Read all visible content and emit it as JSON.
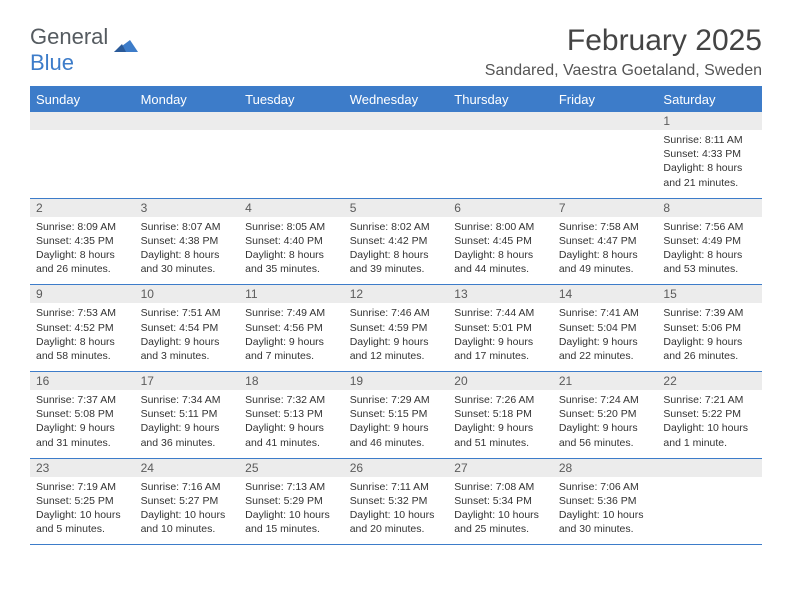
{
  "logo": {
    "text1": "General",
    "text2": "Blue"
  },
  "title": "February 2025",
  "location": "Sandared, Vaestra Goetaland, Sweden",
  "colors": {
    "header_bg": "#3d7cc9",
    "header_fg": "#ffffff",
    "daynum_bg": "#ececec",
    "rule": "#3d7cc9",
    "text": "#333333",
    "page_bg": "#ffffff"
  },
  "weekdays": [
    "Sunday",
    "Monday",
    "Tuesday",
    "Wednesday",
    "Thursday",
    "Friday",
    "Saturday"
  ],
  "weeks": [
    [
      {
        "n": "",
        "lines": [
          "",
          "",
          "",
          ""
        ]
      },
      {
        "n": "",
        "lines": [
          "",
          "",
          "",
          ""
        ]
      },
      {
        "n": "",
        "lines": [
          "",
          "",
          "",
          ""
        ]
      },
      {
        "n": "",
        "lines": [
          "",
          "",
          "",
          ""
        ]
      },
      {
        "n": "",
        "lines": [
          "",
          "",
          "",
          ""
        ]
      },
      {
        "n": "",
        "lines": [
          "",
          "",
          "",
          ""
        ]
      },
      {
        "n": "1",
        "lines": [
          "Sunrise: 8:11 AM",
          "Sunset: 4:33 PM",
          "Daylight: 8 hours",
          "and 21 minutes."
        ]
      }
    ],
    [
      {
        "n": "2",
        "lines": [
          "Sunrise: 8:09 AM",
          "Sunset: 4:35 PM",
          "Daylight: 8 hours",
          "and 26 minutes."
        ]
      },
      {
        "n": "3",
        "lines": [
          "Sunrise: 8:07 AM",
          "Sunset: 4:38 PM",
          "Daylight: 8 hours",
          "and 30 minutes."
        ]
      },
      {
        "n": "4",
        "lines": [
          "Sunrise: 8:05 AM",
          "Sunset: 4:40 PM",
          "Daylight: 8 hours",
          "and 35 minutes."
        ]
      },
      {
        "n": "5",
        "lines": [
          "Sunrise: 8:02 AM",
          "Sunset: 4:42 PM",
          "Daylight: 8 hours",
          "and 39 minutes."
        ]
      },
      {
        "n": "6",
        "lines": [
          "Sunrise: 8:00 AM",
          "Sunset: 4:45 PM",
          "Daylight: 8 hours",
          "and 44 minutes."
        ]
      },
      {
        "n": "7",
        "lines": [
          "Sunrise: 7:58 AM",
          "Sunset: 4:47 PM",
          "Daylight: 8 hours",
          "and 49 minutes."
        ]
      },
      {
        "n": "8",
        "lines": [
          "Sunrise: 7:56 AM",
          "Sunset: 4:49 PM",
          "Daylight: 8 hours",
          "and 53 minutes."
        ]
      }
    ],
    [
      {
        "n": "9",
        "lines": [
          "Sunrise: 7:53 AM",
          "Sunset: 4:52 PM",
          "Daylight: 8 hours",
          "and 58 minutes."
        ]
      },
      {
        "n": "10",
        "lines": [
          "Sunrise: 7:51 AM",
          "Sunset: 4:54 PM",
          "Daylight: 9 hours",
          "and 3 minutes."
        ]
      },
      {
        "n": "11",
        "lines": [
          "Sunrise: 7:49 AM",
          "Sunset: 4:56 PM",
          "Daylight: 9 hours",
          "and 7 minutes."
        ]
      },
      {
        "n": "12",
        "lines": [
          "Sunrise: 7:46 AM",
          "Sunset: 4:59 PM",
          "Daylight: 9 hours",
          "and 12 minutes."
        ]
      },
      {
        "n": "13",
        "lines": [
          "Sunrise: 7:44 AM",
          "Sunset: 5:01 PM",
          "Daylight: 9 hours",
          "and 17 minutes."
        ]
      },
      {
        "n": "14",
        "lines": [
          "Sunrise: 7:41 AM",
          "Sunset: 5:04 PM",
          "Daylight: 9 hours",
          "and 22 minutes."
        ]
      },
      {
        "n": "15",
        "lines": [
          "Sunrise: 7:39 AM",
          "Sunset: 5:06 PM",
          "Daylight: 9 hours",
          "and 26 minutes."
        ]
      }
    ],
    [
      {
        "n": "16",
        "lines": [
          "Sunrise: 7:37 AM",
          "Sunset: 5:08 PM",
          "Daylight: 9 hours",
          "and 31 minutes."
        ]
      },
      {
        "n": "17",
        "lines": [
          "Sunrise: 7:34 AM",
          "Sunset: 5:11 PM",
          "Daylight: 9 hours",
          "and 36 minutes."
        ]
      },
      {
        "n": "18",
        "lines": [
          "Sunrise: 7:32 AM",
          "Sunset: 5:13 PM",
          "Daylight: 9 hours",
          "and 41 minutes."
        ]
      },
      {
        "n": "19",
        "lines": [
          "Sunrise: 7:29 AM",
          "Sunset: 5:15 PM",
          "Daylight: 9 hours",
          "and 46 minutes."
        ]
      },
      {
        "n": "20",
        "lines": [
          "Sunrise: 7:26 AM",
          "Sunset: 5:18 PM",
          "Daylight: 9 hours",
          "and 51 minutes."
        ]
      },
      {
        "n": "21",
        "lines": [
          "Sunrise: 7:24 AM",
          "Sunset: 5:20 PM",
          "Daylight: 9 hours",
          "and 56 minutes."
        ]
      },
      {
        "n": "22",
        "lines": [
          "Sunrise: 7:21 AM",
          "Sunset: 5:22 PM",
          "Daylight: 10 hours",
          "and 1 minute."
        ]
      }
    ],
    [
      {
        "n": "23",
        "lines": [
          "Sunrise: 7:19 AM",
          "Sunset: 5:25 PM",
          "Daylight: 10 hours",
          "and 5 minutes."
        ]
      },
      {
        "n": "24",
        "lines": [
          "Sunrise: 7:16 AM",
          "Sunset: 5:27 PM",
          "Daylight: 10 hours",
          "and 10 minutes."
        ]
      },
      {
        "n": "25",
        "lines": [
          "Sunrise: 7:13 AM",
          "Sunset: 5:29 PM",
          "Daylight: 10 hours",
          "and 15 minutes."
        ]
      },
      {
        "n": "26",
        "lines": [
          "Sunrise: 7:11 AM",
          "Sunset: 5:32 PM",
          "Daylight: 10 hours",
          "and 20 minutes."
        ]
      },
      {
        "n": "27",
        "lines": [
          "Sunrise: 7:08 AM",
          "Sunset: 5:34 PM",
          "Daylight: 10 hours",
          "and 25 minutes."
        ]
      },
      {
        "n": "28",
        "lines": [
          "Sunrise: 7:06 AM",
          "Sunset: 5:36 PM",
          "Daylight: 10 hours",
          "and 30 minutes."
        ]
      },
      {
        "n": "",
        "lines": [
          "",
          "",
          "",
          ""
        ]
      }
    ]
  ]
}
